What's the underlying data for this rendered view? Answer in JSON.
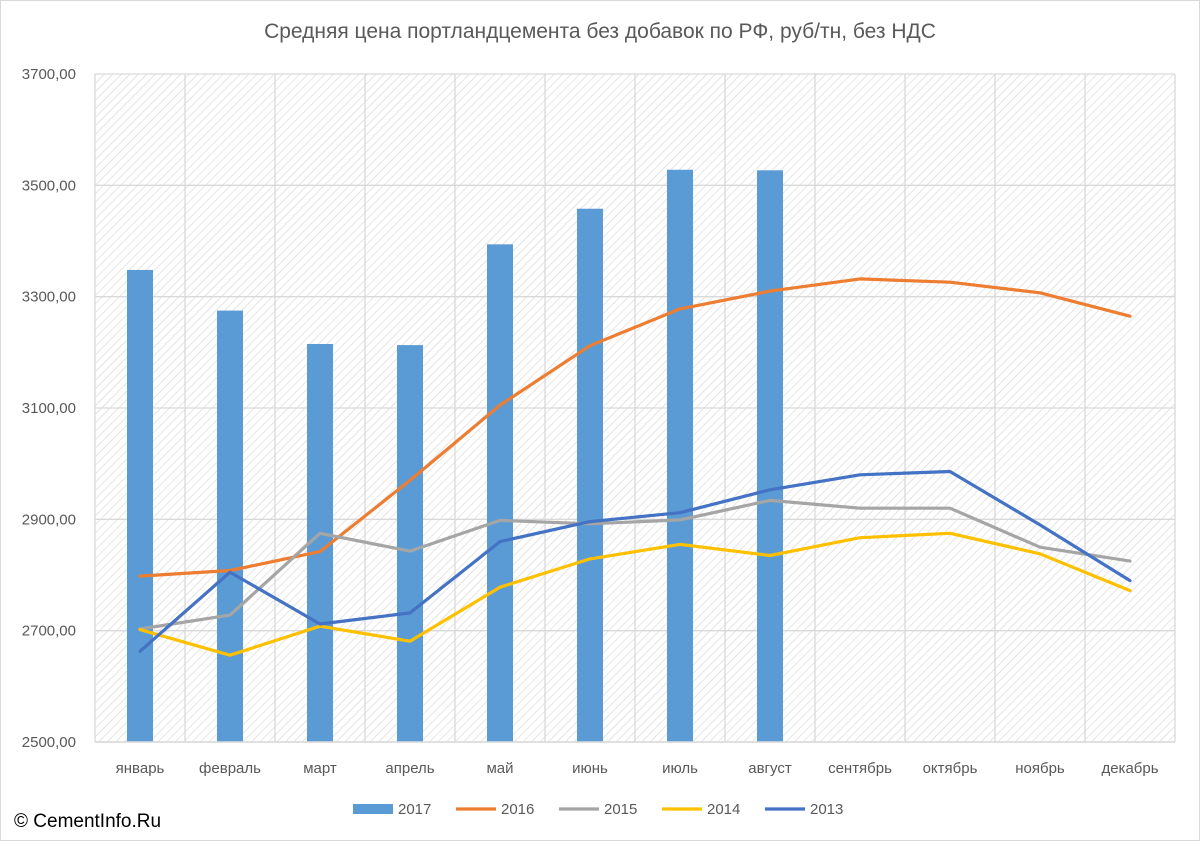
{
  "chart_data": {
    "type": "bar",
    "title": "Средняя цена портландцемента без добавок по РФ, руб/тн, без НДС",
    "categories": [
      "январь",
      "февраль",
      "март",
      "апрель",
      "май",
      "июнь",
      "июль",
      "август",
      "сентябрь",
      "октябрь",
      "ноябрь",
      "декабрь"
    ],
    "ylim": [
      2500,
      3700
    ],
    "yticks": [
      "2500,00",
      "2700,00",
      "2900,00",
      "3100,00",
      "3300,00",
      "3500,00",
      "3700,00"
    ],
    "ytick_values": [
      2500,
      2700,
      2900,
      3100,
      3300,
      3500,
      3700
    ],
    "grid": true,
    "legend_position": "bottom",
    "series": [
      {
        "name": "2017",
        "kind": "bar",
        "color": "#5b9bd5",
        "values": [
          3348,
          3275,
          3215,
          3213,
          3394,
          3458,
          3528,
          3527,
          null,
          null,
          null,
          null
        ]
      },
      {
        "name": "2016",
        "kind": "line",
        "color": "#ed7d31",
        "values": [
          2798,
          2808,
          2842,
          2970,
          3105,
          3212,
          3278,
          3310,
          3332,
          3326,
          3307,
          3265
        ]
      },
      {
        "name": "2015",
        "kind": "line",
        "color": "#a5a5a5",
        "values": [
          2703,
          2728,
          2875,
          2843,
          2898,
          2892,
          2899,
          2934,
          2920,
          2920,
          2850,
          2825
        ]
      },
      {
        "name": "2014",
        "kind": "line",
        "color": "#ffc000",
        "values": [
          2702,
          2656,
          2708,
          2681,
          2778,
          2829,
          2855,
          2835,
          2867,
          2875,
          2838,
          2772
        ]
      },
      {
        "name": "2013",
        "kind": "line",
        "color": "#4472c4",
        "values": [
          2663,
          2805,
          2712,
          2732,
          2860,
          2896,
          2912,
          2953,
          2980,
          2986,
          2890,
          2790
        ]
      }
    ]
  },
  "copyright": "© CementInfo.Ru"
}
